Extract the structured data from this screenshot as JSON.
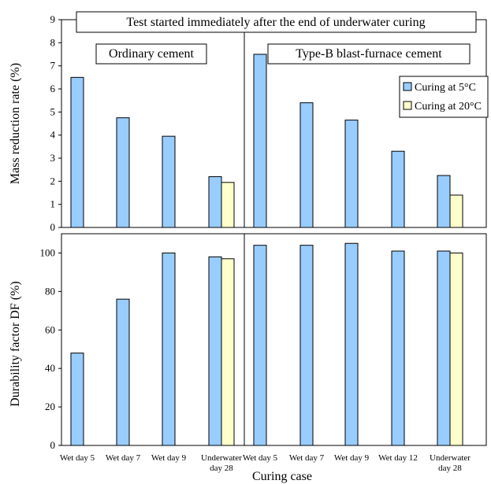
{
  "chart_data": {
    "type": "bar",
    "title": "Test started immediately after the end of underwater curing",
    "xlabel": "Curing case",
    "groups": [
      "Ordinary cement",
      "Type-B blast-furnace cement"
    ],
    "legend": {
      "position": "right",
      "entries": [
        "Curing at 5°C",
        "Curing at 20°C"
      ]
    },
    "colors": {
      "s5": "#99ccff",
      "s20": "#ffffcc",
      "stroke": "#000000"
    },
    "categories": [
      [
        "Wet day 5"
      ],
      [
        "Wet day 7"
      ],
      [
        "Wet day 9"
      ],
      [
        "Underwater",
        "day 28"
      ],
      [
        "Wet day 5"
      ],
      [
        "Wet day 7"
      ],
      [
        "Wet day 9"
      ],
      [
        "Wet day 12"
      ],
      [
        "Underwater",
        "day 28"
      ]
    ],
    "panels": [
      {
        "ylabel": "Mass reduction rate (%)",
        "ylim": [
          0,
          9
        ],
        "yticks": [
          0,
          1,
          2,
          3,
          4,
          5,
          6,
          7,
          8,
          9
        ],
        "series": [
          {
            "name": "Curing at 5°C",
            "values": [
              6.5,
              4.75,
              3.95,
              2.2,
              7.5,
              5.4,
              4.65,
              3.3,
              2.25
            ]
          },
          {
            "name": "Curing at 20°C",
            "values": [
              null,
              null,
              null,
              1.95,
              null,
              null,
              null,
              null,
              1.4
            ]
          }
        ]
      },
      {
        "ylabel": "Durability factor DF (%)",
        "ylim": [
          0,
          110
        ],
        "yticks": [
          0,
          20,
          40,
          60,
          80,
          100
        ],
        "series": [
          {
            "name": "Curing at 5°C",
            "values": [
              48,
              76,
              100,
              98,
              104,
              104,
              105,
              101,
              101
            ]
          },
          {
            "name": "Curing at 20°C",
            "values": [
              null,
              null,
              null,
              97,
              null,
              null,
              null,
              null,
              100
            ]
          }
        ]
      }
    ]
  }
}
